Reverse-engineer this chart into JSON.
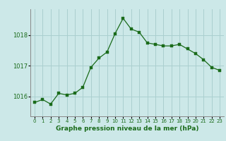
{
  "x": [
    0,
    1,
    2,
    3,
    4,
    5,
    6,
    7,
    8,
    9,
    10,
    11,
    12,
    13,
    14,
    15,
    16,
    17,
    18,
    19,
    20,
    21,
    22,
    23
  ],
  "y": [
    1015.8,
    1015.9,
    1015.75,
    1016.1,
    1016.05,
    1016.1,
    1016.3,
    1016.95,
    1017.25,
    1017.45,
    1018.05,
    1018.55,
    1018.2,
    1018.1,
    1017.75,
    1017.7,
    1017.65,
    1017.65,
    1017.7,
    1017.55,
    1017.4,
    1017.2,
    1016.95,
    1016.85
  ],
  "line_color": "#1a6b1a",
  "marker_color": "#1a6b1a",
  "bg_color": "#cce8e8",
  "grid_color": "#aacfcf",
  "axis_label_color": "#1a6b1a",
  "tick_color": "#1a6b1a",
  "xlabel": "Graphe pression niveau de la mer (hPa)",
  "yticks": [
    1016,
    1017,
    1018
  ],
  "ylim": [
    1015.35,
    1018.85
  ],
  "xlim": [
    -0.5,
    23.5
  ]
}
